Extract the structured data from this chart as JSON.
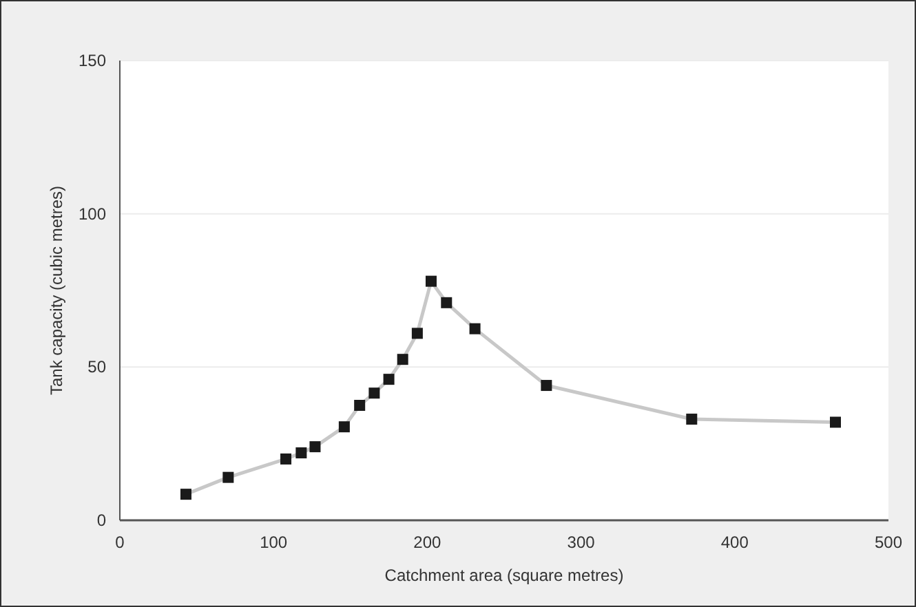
{
  "chart_data": {
    "type": "line",
    "xlabel": "Catchment area (square metres)",
    "ylabel": "Tank capacity (cubic metres)",
    "series": [
      {
        "color": "#c8c8c8",
        "x": [
          43,
          70.5,
          108,
          118,
          127,
          146,
          156,
          165.5,
          175,
          184,
          193.5,
          202.5,
          212.5,
          231,
          277.5,
          372,
          465.5
        ],
        "values": [
          8.5,
          14,
          20,
          22,
          24,
          30.5,
          37.5,
          41.5,
          46,
          52.5,
          61,
          78,
          71,
          62.5,
          44,
          33,
          32
        ]
      }
    ],
    "xlim": [
      0,
      500
    ],
    "xticks": [
      0,
      100,
      200,
      300,
      400,
      500
    ],
    "ylim": [
      0,
      150
    ],
    "yticks": [
      0,
      50,
      100,
      150
    ],
    "grid": "y",
    "marker": "square"
  }
}
